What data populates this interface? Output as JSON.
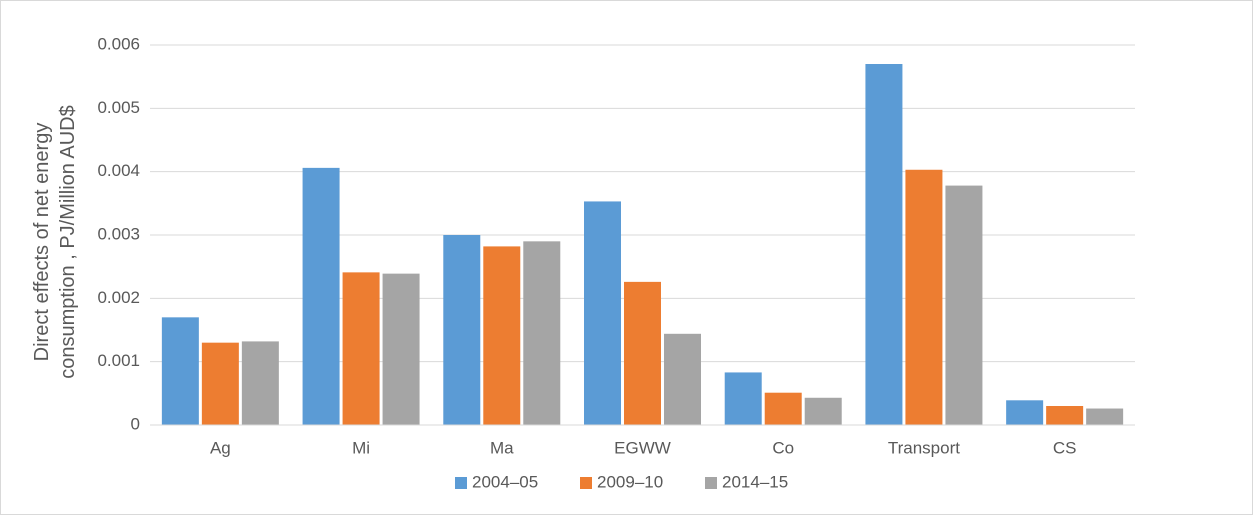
{
  "chart_data": {
    "type": "bar",
    "ylabel": "Direct effects of net energy consumption , PJ/Million AUD$",
    "categories": [
      "Ag",
      "Mi",
      "Ma",
      "EGWW",
      "Co",
      "Transport",
      "CS"
    ],
    "series": [
      {
        "name": "2004–05",
        "color": "#5b9bd5",
        "values": [
          0.0017,
          0.00406,
          0.003,
          0.00353,
          0.00083,
          0.0057,
          0.00039
        ]
      },
      {
        "name": "2009–10",
        "color": "#ed7d31",
        "values": [
          0.0013,
          0.00241,
          0.00282,
          0.00226,
          0.00051,
          0.00403,
          0.0003
        ]
      },
      {
        "name": "2014–15",
        "color": "#a5a5a5",
        "values": [
          0.00132,
          0.00239,
          0.0029,
          0.00144,
          0.00043,
          0.00378,
          0.00026
        ]
      }
    ],
    "ylim": [
      0,
      0.006
    ],
    "yticks": [
      0,
      0.001,
      0.002,
      0.003,
      0.004,
      0.005,
      0.006
    ],
    "grid": true,
    "legend": "bottom"
  }
}
